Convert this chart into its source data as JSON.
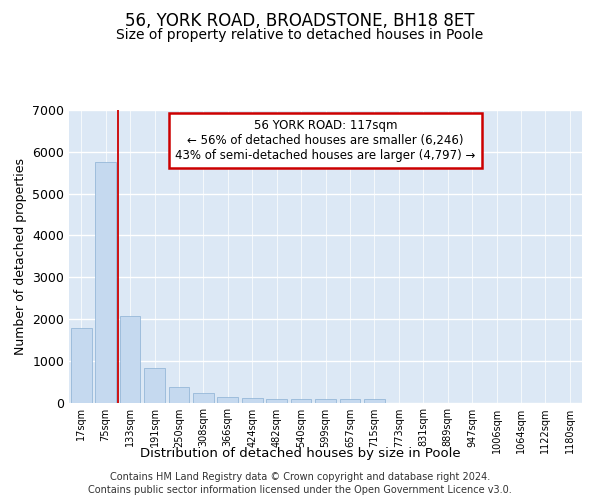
{
  "title_line1": "56, YORK ROAD, BROADSTONE, BH18 8ET",
  "title_line2": "Size of property relative to detached houses in Poole",
  "xlabel": "Distribution of detached houses by size in Poole",
  "ylabel": "Number of detached properties",
  "bar_color": "#c5d9ef",
  "bar_edge_color": "#8ab0d4",
  "vline_color": "#cc0000",
  "annotation_text": "56 YORK ROAD: 117sqm\n← 56% of detached houses are smaller (6,246)\n43% of semi-detached houses are larger (4,797) →",
  "categories": [
    "17sqm",
    "75sqm",
    "133sqm",
    "191sqm",
    "250sqm",
    "308sqm",
    "366sqm",
    "424sqm",
    "482sqm",
    "540sqm",
    "599sqm",
    "657sqm",
    "715sqm",
    "773sqm",
    "831sqm",
    "889sqm",
    "947sqm",
    "1006sqm",
    "1064sqm",
    "1122sqm",
    "1180sqm"
  ],
  "values": [
    1780,
    5750,
    2060,
    820,
    370,
    230,
    120,
    115,
    95,
    95,
    90,
    85,
    80,
    0,
    0,
    0,
    0,
    0,
    0,
    0,
    0
  ],
  "ylim": [
    0,
    7000
  ],
  "yticks": [
    0,
    1000,
    2000,
    3000,
    4000,
    5000,
    6000,
    7000
  ],
  "background_color": "#ffffff",
  "plot_bg_color": "#dce8f5",
  "grid_color": "#ffffff",
  "footer_line1": "Contains HM Land Registry data © Crown copyright and database right 2024.",
  "footer_line2": "Contains public sector information licensed under the Open Government Licence v3.0.",
  "title_fontsize": 12,
  "subtitle_fontsize": 10,
  "annotation_box_color": "#ffffff",
  "annotation_box_edge": "#cc0000",
  "vline_x": 2.0
}
